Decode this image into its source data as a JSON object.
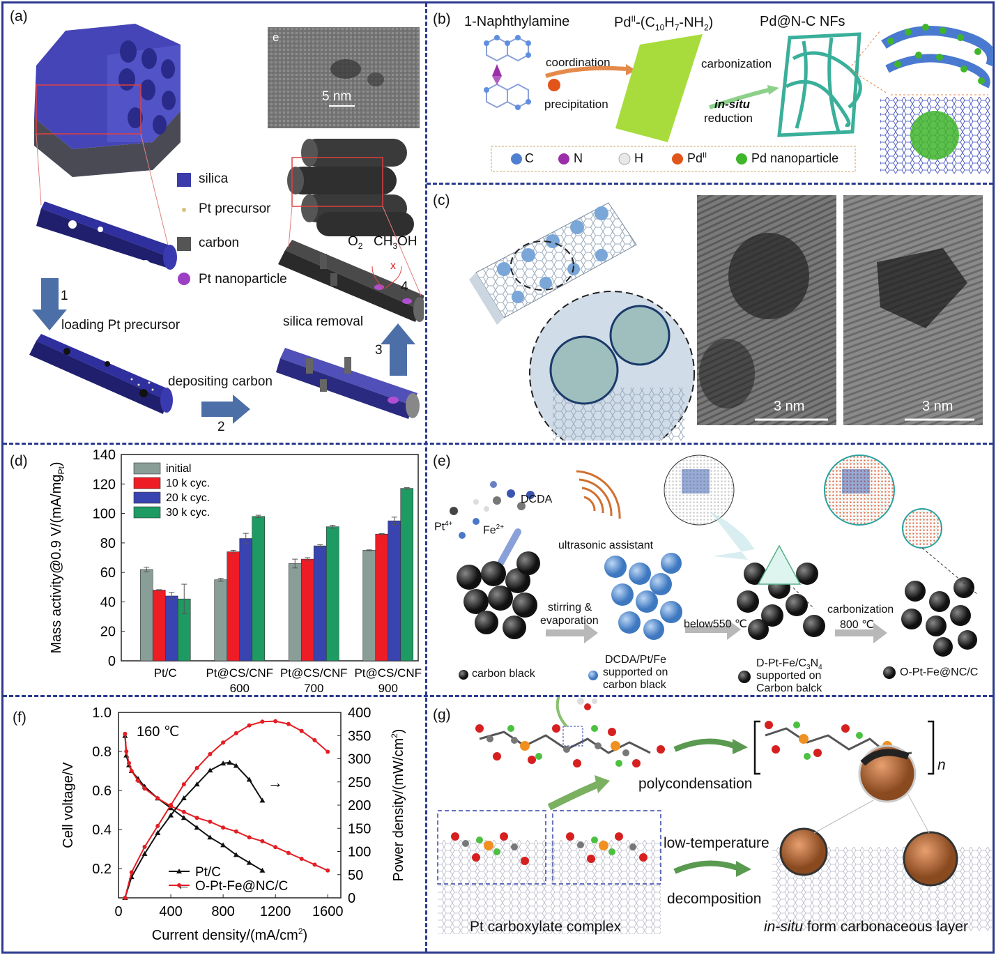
{
  "panels": {
    "a": {
      "label": "(a)",
      "tem_label": "e",
      "tem_scale": "5 nm",
      "legend": [
        "silica",
        "Pt precursor",
        "carbon",
        "Pt nanoparticle"
      ],
      "steps": {
        "s1": "1",
        "s2": "2",
        "s3": "3",
        "s4": "4"
      },
      "step_texts": {
        "loading": "loading Pt precursor",
        "depositing": "depositing carbon",
        "removal": "silica removal"
      },
      "gases": {
        "o2": "O",
        "o2_sub": "2",
        "ch3oh_a": "CH",
        "ch3oh_sub": "3",
        "ch3oh_b": "OH",
        "x": "x"
      }
    },
    "b": {
      "label": "(b)",
      "title1": "1-Naphthylamine",
      "title2": "Pd",
      "title2_sup": "II",
      "title2_rest": "-(C",
      "title2_sub1": "10",
      "title2_mid": "H",
      "title2_sub2": "7",
      "title2_end": "-NH",
      "title2_sub3": "2",
      "title2_close": ")",
      "title3": "Pd@N-C NFs",
      "coordination": "coordination",
      "precipitation": "precipitation",
      "carbonization": "carbonization",
      "in_situ": "in-situ",
      "reduction": "reduction",
      "legend": [
        "C",
        "N",
        "H",
        "Pd",
        "Pd nanoparticle"
      ],
      "legend_pd_sup": "II",
      "legend_colors": [
        "#4f7fd0",
        "#9b2fa8",
        "#e8e8e8",
        "#e2551a",
        "#3fb52a"
      ]
    },
    "c": {
      "label": "(c)",
      "scale1": "3 nm",
      "scale2": "3 nm"
    },
    "d": {
      "label": "(d)"
    },
    "e": {
      "label": "(e)",
      "dcda": "DCDA",
      "pt": "Pt",
      "pt_sup": "4+",
      "fe": "Fe",
      "fe_sup": "2+",
      "ultrasonic": "ultrasonic assistant",
      "stirring": "stirring &",
      "evaporation": "evaporation",
      "below": "below550 ℃",
      "carbonization": "carbonization",
      "t800": "800 ℃",
      "cb": "carbon black",
      "dcda_pt_fe": [
        "DCDA/Pt/Fe",
        "supported on",
        "carbon black"
      ],
      "d_pt_fe": "D-Pt-Fe/C",
      "d_pt_fe_sub": "3",
      "d_pt_fe_n": "N",
      "d_pt_fe_sub2": "4",
      "d_pt_fe_rest": [
        "supported on",
        "Carbon balck"
      ],
      "o_pt_fe": "O-Pt-Fe@NC/C"
    },
    "f": {
      "label": "(f)",
      "temp": "160 ℃"
    },
    "g": {
      "label": "(g)",
      "polycondensation": "polycondensation",
      "n": "n",
      "low_temp": "low-temperature",
      "decomposition": "decomposition",
      "complex": "Pt carboxylate complex",
      "in_situ": "in-situ",
      "form_layer": " form carbonaceous layer"
    }
  },
  "chart_data": [
    {
      "type": "bar",
      "panel": "d",
      "ylabel": "Mass activity@0.9 V/(mA/mg",
      "ylabel_sub": "Pt",
      "ylabel_close": ")",
      "ylim": [
        0,
        140
      ],
      "yticks": [
        0,
        20,
        40,
        60,
        80,
        100,
        120,
        140
      ],
      "categories": [
        [
          "Pt/C"
        ],
        [
          "Pt@CS/CNF",
          "600"
        ],
        [
          "Pt@CS/CNF",
          "700"
        ],
        [
          "Pt@CS/CNF",
          "900"
        ]
      ],
      "legend_position": "top-left",
      "series": [
        {
          "name": "initial",
          "color": "#8a9e98",
          "values": [
            62,
            55,
            66,
            75
          ],
          "errors": [
            1.5,
            1,
            3,
            0.3
          ]
        },
        {
          "name": "10 k cyc.",
          "color": "#ee1c25",
          "values": [
            48,
            74,
            69,
            86
          ],
          "errors": [
            0.3,
            1,
            1,
            0.3
          ]
        },
        {
          "name": "20 k cyc.",
          "color": "#3944b0",
          "values": [
            44,
            83,
            78,
            95
          ],
          "errors": [
            2.5,
            3.5,
            0.8,
            2.5
          ]
        },
        {
          "name": "30 k cyc.",
          "color": "#1e9a63",
          "values": [
            42,
            98,
            91,
            117
          ],
          "errors": [
            10,
            0.8,
            1,
            0.5
          ]
        }
      ]
    },
    {
      "type": "line",
      "panel": "f",
      "xlabel": "Current density/(mA/cm",
      "xlabel_sup": "2",
      "xlabel_close": ")",
      "ylabel_left": "Cell voltage/V",
      "ylabel_right": "Power density/(mW/cm",
      "ylabel_right_sup": "2",
      "ylabel_right_close": ")",
      "xlim": [
        0,
        1700
      ],
      "xticks": [
        0,
        400,
        800,
        1200,
        1600
      ],
      "ylim_left": [
        0.05,
        1.0
      ],
      "yticks_left": [
        0.2,
        0.4,
        0.6,
        0.8,
        1.0
      ],
      "ylim_right": [
        0,
        400
      ],
      "yticks_right": [
        0,
        50,
        100,
        150,
        200,
        250,
        300,
        350,
        400
      ],
      "series": [
        {
          "name": "Pt/C",
          "color": "#111111",
          "marker": "triangle",
          "axis": "left",
          "x": [
            50,
            60,
            80,
            100,
            150,
            200,
            300,
            400,
            500,
            600,
            700,
            800,
            900,
            1000,
            1100
          ],
          "y": [
            0.88,
            0.78,
            0.73,
            0.7,
            0.66,
            0.62,
            0.56,
            0.51,
            0.46,
            0.41,
            0.36,
            0.32,
            0.27,
            0.23,
            0.19
          ]
        },
        {
          "name": "O-Pt-Fe@NC/C",
          "color": "#e31e24",
          "marker": "circle",
          "axis": "left",
          "x": [
            50,
            60,
            80,
            100,
            150,
            200,
            300,
            400,
            500,
            600,
            700,
            800,
            900,
            1000,
            1100,
            1200,
            1300,
            1400,
            1500,
            1600
          ],
          "y": [
            0.89,
            0.8,
            0.74,
            0.7,
            0.65,
            0.61,
            0.56,
            0.52,
            0.49,
            0.46,
            0.44,
            0.41,
            0.39,
            0.36,
            0.34,
            0.31,
            0.28,
            0.25,
            0.22,
            0.19
          ]
        },
        {
          "name": "",
          "color": "#111111",
          "marker": "triangle",
          "axis": "right",
          "x": [
            50,
            100,
            200,
            300,
            400,
            500,
            600,
            700,
            800,
            850,
            900,
            1000,
            1100
          ],
          "y": [
            0,
            45,
            95,
            140,
            178,
            215,
            245,
            275,
            290,
            292,
            285,
            255,
            210
          ]
        },
        {
          "name": "",
          "color": "#e31e24",
          "marker": "circle",
          "axis": "right",
          "x": [
            50,
            100,
            200,
            300,
            400,
            500,
            600,
            700,
            800,
            900,
            1000,
            1100,
            1200,
            1300,
            1400,
            1500,
            1600
          ],
          "y": [
            0,
            55,
            110,
            155,
            200,
            245,
            280,
            310,
            335,
            355,
            372,
            380,
            381,
            375,
            360,
            340,
            315
          ]
        }
      ],
      "annotations": {
        "left_arrow": "←",
        "right_arrow": "→"
      }
    }
  ]
}
